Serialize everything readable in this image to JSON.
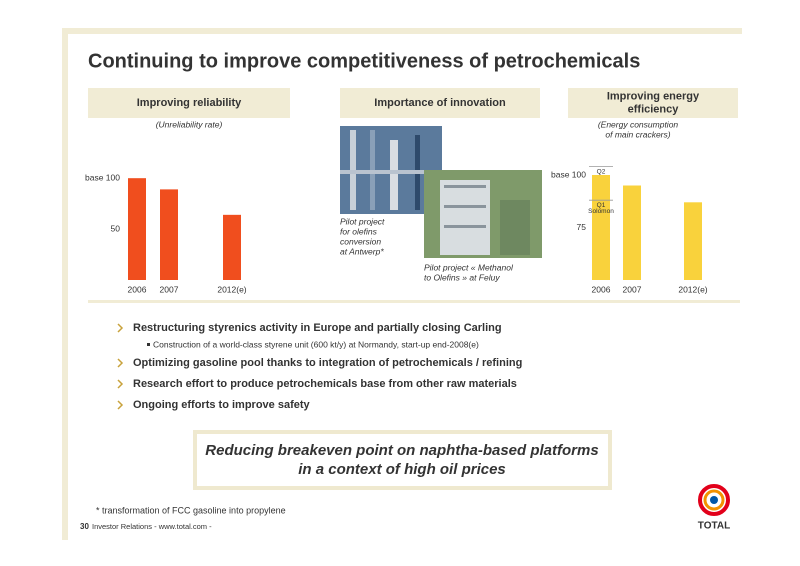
{
  "title": "Continuing to improve competitiveness of petrochemicals",
  "panels": [
    {
      "header": [
        "Improving reliability"
      ]
    },
    {
      "header": [
        "Importance of innovation"
      ]
    },
    {
      "header": [
        "Improving energy",
        "efficiency"
      ]
    }
  ],
  "chart_data": [
    {
      "type": "bar",
      "subtitle": [
        "(Unreliability rate)"
      ],
      "categories": [
        "2006",
        "2007",
        "2012(e)"
      ],
      "values": [
        100,
        89,
        64
      ],
      "color": "#f04e1e",
      "ylim": [
        0,
        110
      ],
      "yticks": [
        50,
        {
          "value": 100,
          "label": "base 100"
        }
      ]
    },
    {
      "type": "bar",
      "subtitle": [
        "(Energy consumption",
        "of main crackers)"
      ],
      "categories": [
        "2006",
        "2007",
        "2012(e)"
      ],
      "values": [
        100,
        95,
        87
      ],
      "color": "#f9d23c",
      "ylim": [
        50,
        105
      ],
      "yticks": [
        75,
        {
          "value": 100,
          "label": "base 100"
        }
      ],
      "annotations": [
        {
          "label": "Q2",
          "value": 104
        },
        {
          "label": "Q1",
          "sublabel": "Solomon",
          "value": 88
        }
      ]
    }
  ],
  "photos": [
    {
      "caption": [
        "Pilot project",
        "for olefins",
        "conversion",
        "at Antwerp*"
      ]
    },
    {
      "caption": [
        "Pilot project « Methanol",
        "to Olefins » at Feluy"
      ]
    }
  ],
  "bullets": [
    {
      "text": "Restructuring styrenics activity in Europe and partially closing Carling",
      "sub": [
        "Construction of a world-class styrene unit (600 kt/y) at Normandy, start-up end-2008(e)"
      ]
    },
    {
      "text": "Optimizing gasoline pool thanks to integration of petrochemicals / refining"
    },
    {
      "text": "Research effort to produce petrochemicals base from other raw materials"
    },
    {
      "text": "Ongoing efforts to improve safety"
    }
  ],
  "highlight": [
    "Reducing breakeven point on naphtha-based platforms",
    "in a context of high oil prices"
  ],
  "footnote": "* transformation of FCC gasoline into propylene",
  "footer": {
    "page": "30",
    "text": "Investor Relations - www.total.com -"
  },
  "logo": "TOTAL"
}
